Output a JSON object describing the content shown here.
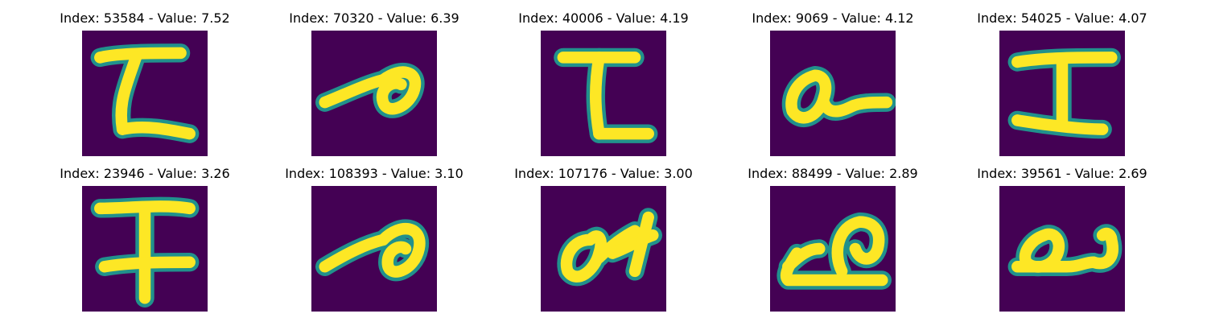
{
  "colors": {
    "background": "#440154",
    "stroke_mid": "#21918c",
    "stroke_high": "#fde725"
  },
  "panels": [
    {
      "title": "Index: 53584 - Value: 7.52",
      "glyph": "letter-L"
    },
    {
      "title": "Index: 70320 - Value: 6.39",
      "glyph": "letter-a-slanted"
    },
    {
      "title": "Index: 40006 - Value: 4.19",
      "glyph": "letter-L"
    },
    {
      "title": "Index: 9069 - Value: 4.12",
      "glyph": "letter-a"
    },
    {
      "title": "Index: 54025 - Value: 4.07",
      "glyph": "letter-I"
    },
    {
      "title": "Index: 23946 - Value: 3.26",
      "glyph": "letter-I-cursive"
    },
    {
      "title": "Index: 108393 - Value: 3.10",
      "glyph": "letter-a-slanted"
    },
    {
      "title": "Index: 107176 - Value: 3.00",
      "glyph": "letter-a-scribble"
    },
    {
      "title": "Index: 88499 - Value: 2.89",
      "glyph": "letter-a-loop"
    },
    {
      "title": "Index: 39561 - Value: 2.69",
      "glyph": "letter-a-wide"
    }
  ]
}
